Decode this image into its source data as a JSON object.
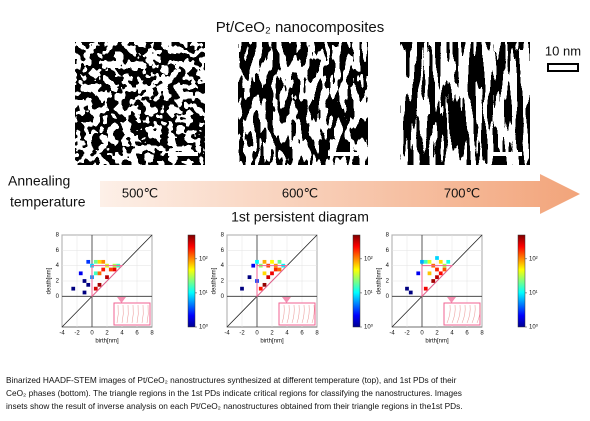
{
  "header": {
    "title": "Pt/CeO₂ nanocomposites",
    "scale_bar": "10 nm"
  },
  "annealing": {
    "label_lines": [
      "Annealing",
      "temperature"
    ],
    "temperatures": [
      "500℃",
      "600℃",
      "700℃"
    ]
  },
  "section_title": "1st persistent diagram",
  "chart_data": [
    {
      "type": "scatter",
      "xlabel": "birth[nm]",
      "ylabel": "death[nm]",
      "xlim": [
        -4,
        8
      ],
      "ylim": [
        -4,
        8
      ],
      "xticks": [
        -4,
        -2,
        0,
        2,
        4,
        6,
        8
      ],
      "yticks": [
        0,
        2,
        4,
        6,
        8
      ],
      "x": [
        -2.5,
        -1.5,
        -1,
        -1,
        -0.5,
        -0.5,
        0,
        0,
        0.5,
        0.5,
        0.5,
        1,
        1,
        1,
        1.5,
        1.5,
        2,
        2,
        2.5,
        3,
        3,
        3.5
      ],
      "y": [
        1,
        3,
        2,
        0.5,
        4.5,
        1.5,
        4,
        2.5,
        4.5,
        3,
        1,
        4.5,
        3,
        1.5,
        4.5,
        3.5,
        4,
        2.5,
        3.5,
        4,
        3.5,
        4
      ],
      "c": [
        1,
        2,
        1,
        1,
        3,
        1,
        8,
        5,
        20,
        15,
        300,
        60,
        120,
        400,
        100,
        200,
        40,
        350,
        150,
        30,
        250,
        15
      ],
      "colorbar": {
        "clim": [
          1,
          500
        ],
        "scale": "log",
        "ticks": [
          {
            "value": 1,
            "label": "10⁰"
          },
          {
            "value": 10,
            "label": "10¹"
          },
          {
            "value": 100,
            "label": "10²"
          }
        ]
      }
    },
    {
      "type": "scatter",
      "xlabel": "birth[nm]",
      "ylabel": "death[nm]",
      "xlim": [
        -4,
        8
      ],
      "ylim": [
        -4,
        8
      ],
      "xticks": [
        -4,
        -2,
        0,
        2,
        4,
        6,
        8
      ],
      "yticks": [
        0,
        2,
        4,
        6,
        8
      ],
      "x": [
        -2,
        -1,
        -0.5,
        0,
        0,
        0.5,
        0.5,
        1,
        1,
        1,
        1.5,
        1.5,
        2,
        2,
        2.5,
        2.5,
        3,
        3,
        3.5
      ],
      "y": [
        1,
        2.5,
        4,
        4.5,
        2,
        4,
        1,
        4.5,
        3,
        1.5,
        4,
        2.5,
        4.5,
        3,
        4,
        3.5,
        4.5,
        3.5,
        4
      ],
      "c": [
        1,
        1,
        2,
        10,
        3,
        25,
        200,
        80,
        60,
        450,
        150,
        300,
        50,
        250,
        90,
        180,
        20,
        120,
        10
      ],
      "colorbar": {
        "clim": [
          1,
          500
        ],
        "scale": "log",
        "ticks": [
          {
            "value": 1,
            "label": "10⁰"
          },
          {
            "value": 10,
            "label": "10¹"
          },
          {
            "value": 100,
            "label": "10²"
          }
        ]
      }
    },
    {
      "type": "scatter",
      "xlabel": "birth[nm]",
      "ylabel": "death[nm]",
      "xlim": [
        -4,
        8
      ],
      "ylim": [
        -4,
        8
      ],
      "xticks": [
        -4,
        -2,
        0,
        2,
        4,
        6,
        8
      ],
      "yticks": [
        0,
        2,
        4,
        6,
        8
      ],
      "x": [
        -2,
        -1.5,
        -0.5,
        0,
        0.5,
        0.5,
        1,
        1,
        1.5,
        1.5,
        2,
        2,
        2,
        2.5,
        2.5,
        3,
        3,
        3.5
      ],
      "y": [
        1,
        0.5,
        3,
        4.5,
        4.5,
        1,
        4.5,
        3,
        4,
        2,
        5,
        3.5,
        2.5,
        4.5,
        3,
        4,
        3.5,
        4.5
      ],
      "c": [
        1,
        1,
        2,
        6,
        15,
        250,
        40,
        70,
        120,
        400,
        8,
        180,
        350,
        60,
        220,
        30,
        140,
        12
      ],
      "colorbar": {
        "clim": [
          1,
          500
        ],
        "scale": "log",
        "ticks": [
          {
            "value": 1,
            "label": "10⁰"
          },
          {
            "value": 10,
            "label": "10¹"
          },
          {
            "value": 100,
            "label": "10²"
          }
        ]
      }
    }
  ],
  "caption": {
    "lines": [
      "Binarized HAADF-STEM images of Pt/CeO₂ nanostructures synthesized at different temperature (top), and 1st PDs of their",
      "CeO₂ phases (bottom). The triangle regions in the 1st PDs indicate critical regions for classifying the nanostructures. Images",
      "insets show the result of inverse analysis on each Pt/CeO₂ nanostructures obtained from their triangle regions in the1st PDs."
    ]
  }
}
